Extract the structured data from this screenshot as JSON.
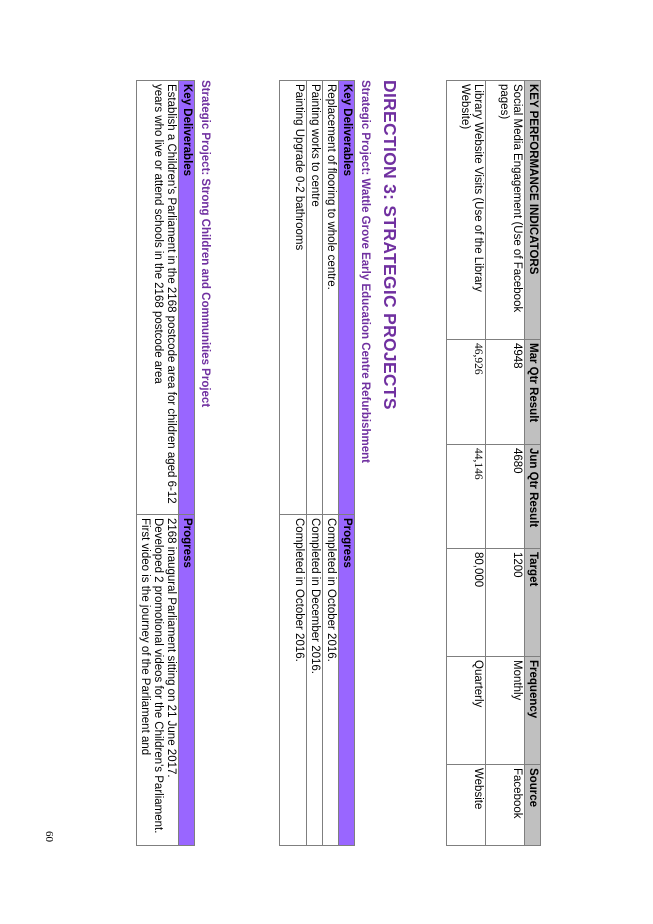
{
  "kpi_table": {
    "headers": [
      "KEY PERFORMANCE INDICATORS",
      "Mar Qtr Result",
      "Jun Qtr Result",
      "Target",
      "Frequency",
      "Source"
    ],
    "rows": [
      [
        "Social Media Engagement (Use of Facebook pages)",
        "4948",
        "4680",
        "1200",
        "Monthly",
        "Facebook"
      ],
      [
        "Library Website Visits (Use of the Library Website)",
        "46,926",
        "44,146",
        "80,000",
        "Quarterly",
        "Website"
      ]
    ]
  },
  "direction_heading": "DIRECTION 3: STRATEGIC PROJECTS",
  "project1": {
    "title": "Strategic Project: Wattle Grove Early Education Centre Refurbishment",
    "headers": [
      "Key Deliverables",
      "Progress"
    ],
    "rows": [
      [
        "Replacement of flooring to whole centre.",
        "Completed in October 2016."
      ],
      [
        "Painting works to centre",
        "Completed in December 2016."
      ],
      [
        "Painting Upgrade 0-2 bathrooms",
        "Completed in October 2016."
      ]
    ]
  },
  "project2": {
    "title": "Strategic Project: Strong Children and Communities Project",
    "headers": [
      "Key Deliverables",
      "Progress"
    ],
    "rows": [
      [
        "Establish a Children's Parliament in the 2168 postcode area for children aged 6-12 years who live or attend schools in the 2168 postcode area",
        "2168 inaugural Parliament sitting on 21 June 2017.\nDeveloped 2 promotional videos for the Children's Parliament. First video is the journey of the Parliament and"
      ]
    ]
  },
  "page_number": "60"
}
